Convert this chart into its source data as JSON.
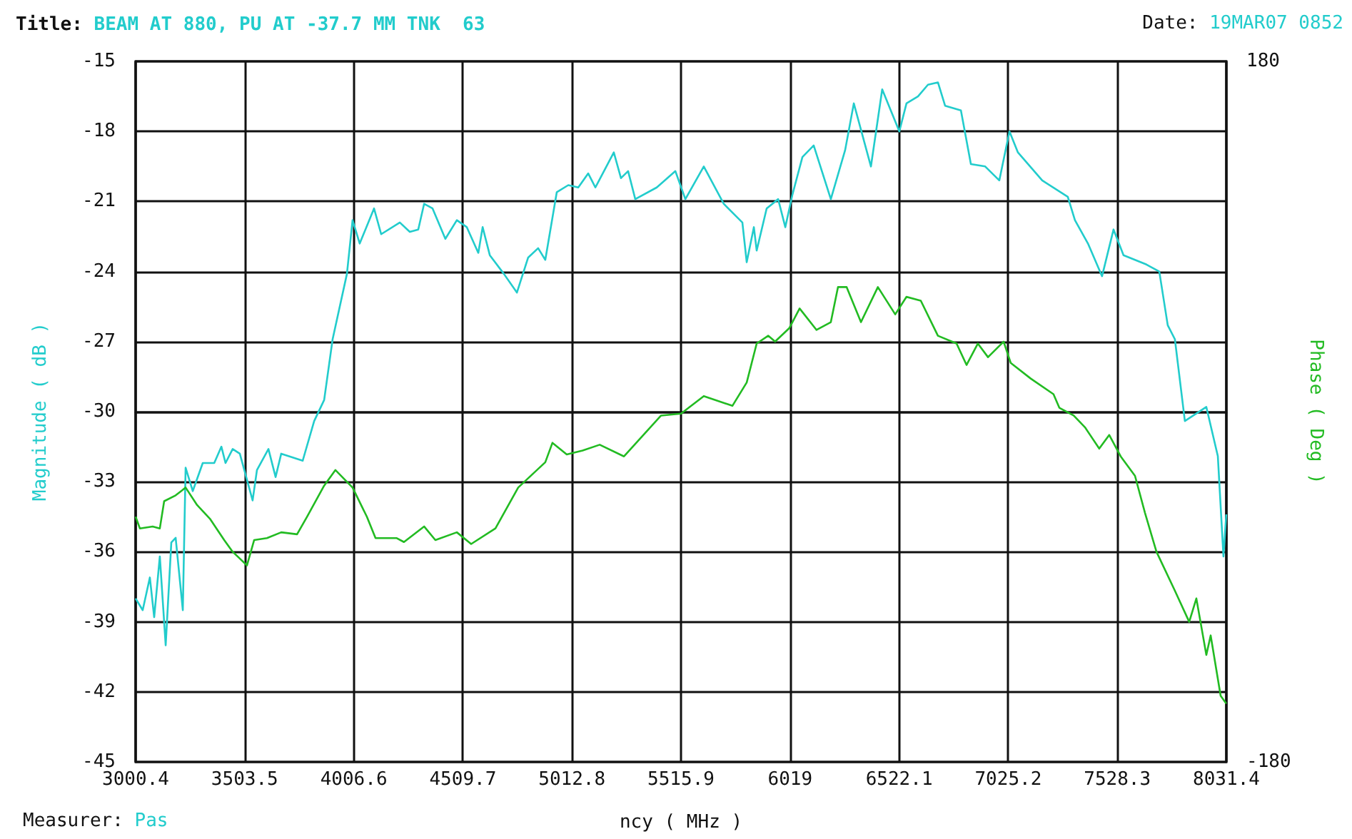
{
  "chart_data": {
    "type": "line",
    "title": "Title: BEAM AT 880, PU AT -37.7 MM TNK  63",
    "annotations": [
      "Date: 19MAR07 0852",
      "Measurer: Pas"
    ],
    "xlabel": "ncy ( MHz )",
    "ylabel": "Magnitude ( dB )",
    "y2label": "Phase ( Deg )",
    "xlim": [
      3000.4,
      8031.4
    ],
    "xticks": [
      3000.4,
      3503.5,
      4006.6,
      4509.7,
      5012.8,
      5515.9,
      6019,
      6522.1,
      7025.2,
      7528.3,
      8031.4
    ],
    "ylim": [
      -45,
      -15
    ],
    "yticks": [
      -45,
      -42,
      -39,
      -36,
      -33,
      -30,
      -27,
      -24,
      -21,
      -18,
      -15
    ],
    "y2lim": [
      -180,
      180
    ],
    "y2ticks": [
      -180,
      180
    ],
    "grid": true,
    "series": [
      {
        "color": "#22cccc",
        "x": [
          3000.4,
          3033,
          3066,
          3086,
          3112,
          3139,
          3165,
          3185,
          3218,
          3231,
          3264,
          3310,
          3363,
          3396,
          3415,
          3448,
          3481,
          3540,
          3560,
          3613,
          3646,
          3672,
          3771,
          3824,
          3870,
          3909,
          3975,
          4001,
          4034,
          4100,
          4133,
          4219,
          4265,
          4304,
          4331,
          4370,
          4429,
          4482,
          4528,
          4581,
          4601,
          4634,
          4699,
          4759,
          4811,
          4857,
          4890,
          4943,
          4996,
          5042,
          5088,
          5121,
          5206,
          5239,
          5272,
          5305,
          5404,
          5490,
          5536,
          5621,
          5713,
          5799,
          5819,
          5852,
          5865,
          5911,
          5964,
          5997,
          6030,
          6076,
          6128,
          6207,
          6273,
          6313,
          6392,
          6444,
          6523,
          6556,
          6609,
          6655,
          6701,
          6734,
          6807,
          6853,
          6919,
          6984,
          7031,
          7070,
          7182,
          7300,
          7333,
          7393,
          7458,
          7511,
          7557,
          7663,
          7722,
          7761,
          7794,
          7840,
          7939,
          7992,
          8018,
          8031
        ],
        "values": [
          -38.0,
          -38.5,
          -37.1,
          -38.8,
          -36.2,
          -40.0,
          -35.6,
          -35.4,
          -38.5,
          -32.4,
          -33.4,
          -32.2,
          -32.2,
          -31.5,
          -32.2,
          -31.6,
          -31.8,
          -33.8,
          -32.5,
          -31.6,
          -32.8,
          -31.8,
          -32.1,
          -30.4,
          -29.5,
          -26.9,
          -24.1,
          -21.8,
          -22.8,
          -21.3,
          -22.4,
          -21.9,
          -22.3,
          -22.2,
          -21.1,
          -21.3,
          -22.6,
          -21.8,
          -22.1,
          -23.2,
          -22.1,
          -23.3,
          -24.1,
          -24.9,
          -23.4,
          -23.0,
          -23.5,
          -20.6,
          -20.3,
          -20.4,
          -19.8,
          -20.4,
          -18.9,
          -20.0,
          -19.7,
          -20.9,
          -20.4,
          -19.7,
          -20.9,
          -19.5,
          -21.1,
          -21.9,
          -23.6,
          -22.1,
          -23.1,
          -21.3,
          -20.9,
          -22.1,
          -20.7,
          -19.1,
          -18.6,
          -20.9,
          -18.8,
          -16.8,
          -19.5,
          -16.2,
          -18.0,
          -16.8,
          -16.5,
          -16.0,
          -15.9,
          -16.9,
          -17.1,
          -19.4,
          -19.5,
          -20.1,
          -18.0,
          -18.9,
          -20.1,
          -20.8,
          -21.8,
          -22.8,
          -24.2,
          -22.2,
          -23.3,
          -23.7,
          -24.0,
          -26.3,
          -26.9,
          -30.4,
          -29.8,
          -31.9,
          -36.2,
          -34.4
        ]
      },
      {
        "color": "#22bb22",
        "axis": "y2",
        "x": [
          3000.4,
          3020,
          3079,
          3112,
          3132,
          3185,
          3231,
          3284,
          3343,
          3409,
          3448,
          3514,
          3547,
          3606,
          3672,
          3745,
          3791,
          3870,
          3922,
          4001,
          4067,
          4107,
          4205,
          4238,
          4331,
          4383,
          4482,
          4548,
          4660,
          4765,
          4890,
          4923,
          4989,
          5062,
          5141,
          5253,
          5318,
          5424,
          5516,
          5621,
          5753,
          5819,
          5865,
          5918,
          5950,
          6016,
          6063,
          6141,
          6207,
          6240,
          6280,
          6346,
          6424,
          6504,
          6556,
          6622,
          6701,
          6787,
          6833,
          6885,
          6932,
          7004,
          7037,
          7129,
          7234,
          7261,
          7327,
          7379,
          7445,
          7491,
          7544,
          7610,
          7656,
          7709,
          7794,
          7860,
          7893,
          7939,
          7959,
          8005,
          8031
        ],
        "values": [
          -54,
          -60,
          -59,
          -60,
          -46,
          -43,
          -39,
          -48,
          -55,
          -66,
          -72,
          -79,
          -66,
          -65,
          -62,
          -63,
          -54,
          -38,
          -30,
          -39,
          -54,
          -65,
          -65,
          -67,
          -59,
          -66,
          -62,
          -68,
          -60,
          -39,
          -26,
          -16,
          -22,
          -20,
          -17,
          -23,
          -15,
          -2,
          -1,
          8,
          3,
          15,
          35,
          39,
          36,
          43,
          53,
          42,
          46,
          64,
          64,
          46,
          64,
          50,
          59,
          57,
          39,
          35,
          24,
          35,
          28,
          36,
          25,
          17,
          9,
          2,
          -2,
          -8,
          -19,
          -12,
          -23,
          -33,
          -52,
          -72,
          -92,
          -108,
          -96,
          -125,
          -115,
          -146,
          -150
        ]
      }
    ]
  }
}
